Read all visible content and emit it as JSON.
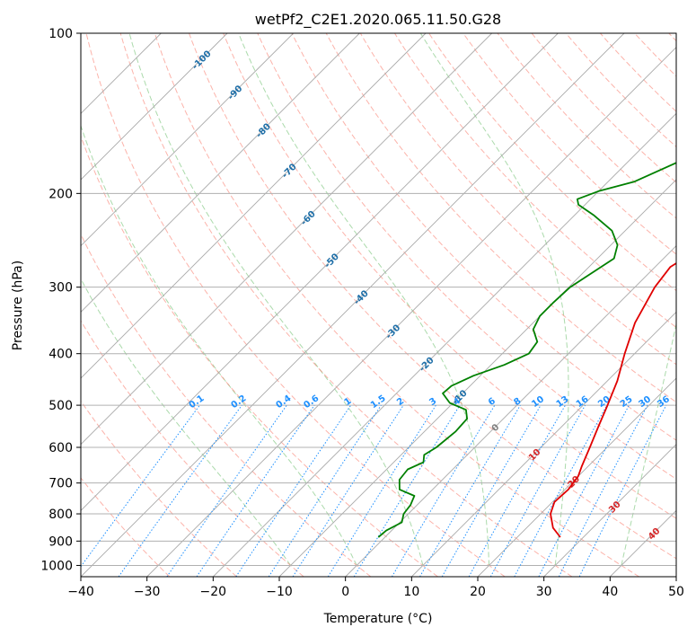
{
  "chart_data": {
    "type": "line",
    "subtype": "skew-t log-p diagram",
    "title": "wetPf2_C2E1.2020.065.11.50.G28",
    "xlabel": "Temperature (°C)",
    "ylabel": "Pressure (hPa)",
    "xlim": [
      -40,
      50
    ],
    "ylim": [
      1050,
      100
    ],
    "y_scale": "log",
    "grid": true,
    "x_ticks": [
      -40,
      -30,
      -20,
      -10,
      0,
      10,
      20,
      30,
      40,
      50
    ],
    "y_ticks": [
      100,
      200,
      300,
      400,
      500,
      600,
      700,
      800,
      900,
      1000
    ],
    "series": [
      {
        "color": "#e00000",
        "role": "temperature",
        "points": [
          {
            "p": 885,
            "t": 26.5
          },
          {
            "p": 850,
            "t": 24.0
          },
          {
            "p": 800,
            "t": 21.5
          },
          {
            "p": 760,
            "t": 20.3
          },
          {
            "p": 720,
            "t": 20.5
          },
          {
            "p": 680,
            "t": 20.0
          },
          {
            "p": 650,
            "t": 19.0
          },
          {
            "p": 600,
            "t": 17.4
          },
          {
            "p": 550,
            "t": 15.6
          },
          {
            "p": 500,
            "t": 13.7
          },
          {
            "p": 450,
            "t": 11.5
          },
          {
            "p": 400,
            "t": 8.5
          },
          {
            "p": 350,
            "t": 5.4
          },
          {
            "p": 300,
            "t": 3.0
          },
          {
            "p": 275,
            "t": 2.3
          },
          {
            "p": 250,
            "t": 4.2
          },
          {
            "p": 225,
            "t": 8.5
          },
          {
            "p": 200,
            "t": 11.7
          },
          {
            "p": 175,
            "t": 12.7
          },
          {
            "p": 150,
            "t": 12.6
          },
          {
            "p": 130,
            "t": 11.4
          },
          {
            "p": 115,
            "t": 10.8
          },
          {
            "p": 105,
            "t": 11.7
          },
          {
            "p": 100,
            "t": 12.5
          }
        ]
      },
      {
        "color": "#008000",
        "role": "dewpoint",
        "points": [
          {
            "p": 885,
            "t": -1.0
          },
          {
            "p": 860,
            "t": -0.8
          },
          {
            "p": 830,
            "t": 0.3
          },
          {
            "p": 800,
            "t": -0.7
          },
          {
            "p": 770,
            "t": -1.0
          },
          {
            "p": 740,
            "t": -1.8
          },
          {
            "p": 720,
            "t": -5.0
          },
          {
            "p": 690,
            "t": -6.5
          },
          {
            "p": 660,
            "t": -6.8
          },
          {
            "p": 640,
            "t": -5.5
          },
          {
            "p": 620,
            "t": -6.5
          },
          {
            "p": 600,
            "t": -5.8
          },
          {
            "p": 560,
            "t": -5.3
          },
          {
            "p": 530,
            "t": -5.5
          },
          {
            "p": 510,
            "t": -7.0
          },
          {
            "p": 495,
            "t": -10.5
          },
          {
            "p": 475,
            "t": -13.0
          },
          {
            "p": 460,
            "t": -12.8
          },
          {
            "p": 440,
            "t": -11.0
          },
          {
            "p": 420,
            "t": -8.0
          },
          {
            "p": 400,
            "t": -6.0
          },
          {
            "p": 380,
            "t": -6.5
          },
          {
            "p": 360,
            "t": -9.0
          },
          {
            "p": 340,
            "t": -10.0
          },
          {
            "p": 320,
            "t": -10.0
          },
          {
            "p": 300,
            "t": -9.8
          },
          {
            "p": 280,
            "t": -8.5
          },
          {
            "p": 265,
            "t": -7.5
          },
          {
            "p": 250,
            "t": -9.0
          },
          {
            "p": 235,
            "t": -12.0
          },
          {
            "p": 220,
            "t": -17.0
          },
          {
            "p": 210,
            "t": -21.0
          },
          {
            "p": 205,
            "t": -22.0
          },
          {
            "p": 198,
            "t": -20.0
          },
          {
            "p": 190,
            "t": -16.0
          },
          {
            "p": 175,
            "t": -12.5
          },
          {
            "p": 160,
            "t": -10.8
          },
          {
            "p": 150,
            "t": -10.7
          },
          {
            "p": 135,
            "t": -10.0
          },
          {
            "p": 120,
            "t": -7.5
          },
          {
            "p": 110,
            "t": -4.5
          },
          {
            "p": 100,
            "t": -2.5
          }
        ]
      }
    ],
    "background": {
      "isotherms": [
        -110,
        -100,
        -90,
        -80,
        -70,
        -60,
        -50,
        -40,
        -30,
        -20,
        -10,
        0,
        10,
        20,
        30,
        40,
        50
      ],
      "isotherm_labels": [
        "-100",
        "-90",
        "-80",
        "-70",
        "-60",
        "-50",
        "-40",
        "-30",
        "-20",
        "-10",
        "0",
        "10",
        "20",
        "30",
        "40"
      ],
      "mixing_ratio_lines": [
        0.1,
        0.2,
        0.4,
        0.6,
        1,
        1.5,
        2,
        3,
        4,
        6,
        8,
        10,
        13,
        16,
        20,
        25,
        30,
        36
      ],
      "mixing_ratio_labels": [
        "0.1",
        "0.2",
        "0.4",
        "0.6",
        "1",
        "1.5",
        "2",
        "3",
        "4",
        "6",
        "8",
        "10",
        "13",
        "16",
        "20",
        "25",
        "30",
        "36"
      ],
      "dry_adiabats": [
        -30,
        -20,
        -10,
        0,
        10,
        20,
        30,
        40,
        50,
        60,
        70,
        80,
        90,
        100,
        110,
        120,
        130,
        140,
        150,
        160,
        170,
        180,
        190,
        200
      ],
      "moist_adiabats": [
        -10,
        0,
        10,
        20,
        30,
        40
      ]
    },
    "colors": {
      "temperature": "#e00000",
      "dewpoint": "#008000",
      "isotherm_cold_label": "#1f6fa8",
      "isotherm_warm_label": "#d62728",
      "isotherm_zero_label": "#808080",
      "mixing_ratio": "#1e90ff",
      "dry_adiabat": "#fa8072",
      "moist_adiabat": "#66bb66",
      "isotherm_line": "#a9a9a9"
    }
  }
}
